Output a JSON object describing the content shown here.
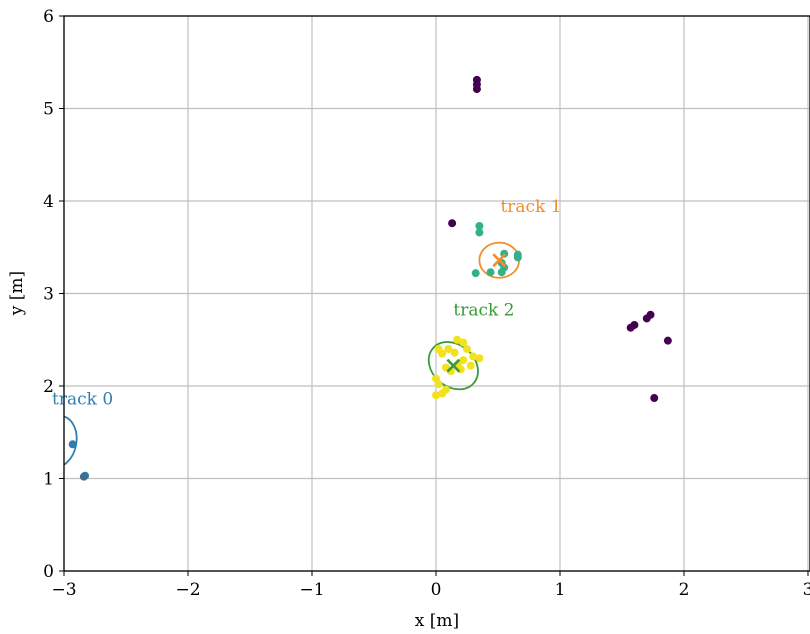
{
  "chart_data": {
    "type": "scatter",
    "xlabel": "x [m]",
    "ylabel": "y [m]",
    "xlim": [
      -3,
      3
    ],
    "ylim": [
      0,
      6
    ],
    "x_ticks": [
      -3,
      -2,
      -1,
      0,
      1,
      2,
      3
    ],
    "x_tick_labels": [
      "−3",
      "−2",
      "−1",
      "0",
      "1",
      "2",
      "3"
    ],
    "y_ticks": [
      0,
      1,
      2,
      3,
      4,
      5,
      6
    ],
    "y_tick_labels": [
      "0",
      "1",
      "2",
      "3",
      "4",
      "5",
      "6"
    ],
    "grid": true,
    "colors": {
      "track0": "#2e7fb0",
      "track1": "#f28e2b",
      "track2": "#3a9a3a",
      "purple": "#440154",
      "teal": "#35b08a",
      "yellow": "#f2e21e",
      "steel": "#3b6e8f",
      "grid": "#c0c0c0"
    },
    "point_groups": [
      {
        "color": "#440154",
        "points": [
          [
            0.33,
            5.31
          ],
          [
            0.33,
            5.26
          ],
          [
            0.33,
            5.21
          ],
          [
            0.13,
            3.76
          ],
          [
            1.57,
            2.63
          ],
          [
            1.6,
            2.66
          ],
          [
            1.7,
            2.73
          ],
          [
            1.73,
            2.77
          ],
          [
            1.87,
            2.49
          ],
          [
            1.76,
            1.87
          ]
        ]
      },
      {
        "color": "#35b08a",
        "points": [
          [
            0.35,
            3.73
          ],
          [
            0.35,
            3.66
          ],
          [
            0.55,
            3.43
          ],
          [
            0.66,
            3.42
          ],
          [
            0.66,
            3.39
          ],
          [
            0.53,
            3.33
          ],
          [
            0.55,
            3.28
          ],
          [
            0.53,
            3.23
          ],
          [
            0.32,
            3.22
          ],
          [
            0.44,
            3.23
          ]
        ]
      },
      {
        "color": "#f2e21e",
        "points": [
          [
            0.17,
            2.5
          ],
          [
            0.22,
            2.47
          ],
          [
            0.02,
            2.4
          ],
          [
            0.1,
            2.4
          ],
          [
            0.25,
            2.4
          ],
          [
            0.05,
            2.35
          ],
          [
            0.15,
            2.36
          ],
          [
            0.3,
            2.32
          ],
          [
            0.35,
            2.3
          ],
          [
            0.22,
            2.28
          ],
          [
            0.08,
            2.2
          ],
          [
            0.18,
            2.24
          ],
          [
            0.28,
            2.22
          ],
          [
            0.2,
            2.18
          ],
          [
            0.12,
            2.16
          ],
          [
            0.0,
            2.08
          ],
          [
            0.02,
            2.02
          ],
          [
            0.08,
            1.96
          ],
          [
            0.05,
            1.92
          ],
          [
            0.0,
            1.9
          ]
        ]
      },
      {
        "color": "#2e7fb0",
        "points": [
          [
            -2.93,
            1.37
          ],
          [
            -2.83,
            1.03
          ]
        ]
      },
      {
        "color": "#3b6e8f",
        "points": [
          [
            -2.84,
            1.02
          ]
        ]
      }
    ],
    "tracks": [
      {
        "label": "track 0",
        "color": "#2e7fb0",
        "center": [
          -3.05,
          1.4
        ],
        "radii": [
          0.15,
          0.28
        ],
        "angle_deg": 10,
        "marker": null,
        "label_pos": [
          -3.1,
          1.8
        ]
      },
      {
        "label": "track 1",
        "color": "#f28e2b",
        "center": [
          0.51,
          3.36
        ],
        "radii": [
          0.16,
          0.19
        ],
        "angle_deg": 0,
        "marker": [
          0.51,
          3.36
        ],
        "label_pos": [
          0.52,
          3.88
        ]
      },
      {
        "label": "track 2",
        "color": "#3a9a3a",
        "center": [
          0.14,
          2.22
        ],
        "radii": [
          0.17,
          0.29
        ],
        "angle_deg": -50,
        "marker": [
          0.14,
          2.22
        ],
        "label_pos": [
          0.14,
          2.76
        ]
      }
    ]
  }
}
